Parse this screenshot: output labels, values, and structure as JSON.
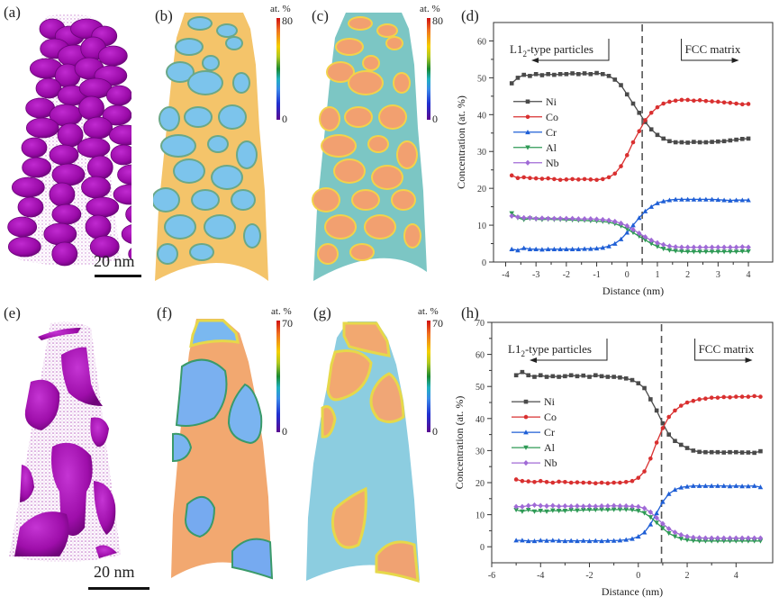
{
  "figure": {
    "panel_labels": [
      "(a)",
      "(b)",
      "(c)",
      "(d)",
      "(e)",
      "(f)",
      "(g)",
      "(h)"
    ],
    "scale_bars": [
      {
        "panel": "a",
        "text": "20 nm"
      },
      {
        "panel": "e",
        "text": "20 nm"
      }
    ],
    "colormaps": {
      "b": {
        "unit": "at. %",
        "max": "80",
        "min": "0"
      },
      "c": {
        "unit": "at. %",
        "max": "80",
        "min": "0"
      },
      "f": {
        "unit": "at. %",
        "max": "70",
        "min": "0"
      },
      "g": {
        "unit": "at. %",
        "max": "70",
        "min": "0"
      }
    },
    "colors": {
      "Ni": "#4a4a4a",
      "Co": "#d93030",
      "Cr": "#1f5fd6",
      "Al": "#2e9a55",
      "Nb": "#a06ad6",
      "particle": "#a010b0",
      "dashed": "#555555"
    }
  },
  "chart_data": [
    {
      "id": "d",
      "type": "line",
      "title": "",
      "xlabel": "Distance (nm)",
      "ylabel": "Concentration (at. %)",
      "xlim": [
        -4.4,
        4.8
      ],
      "ylim": [
        0,
        65
      ],
      "xticks": [
        -4,
        -3,
        -2,
        -1,
        0,
        1,
        2,
        3,
        4
      ],
      "xtick_labels": [
        "-4",
        "-3",
        "-2",
        "-1",
        "0",
        "1",
        "2",
        "3",
        "4"
      ],
      "yticks": [
        0,
        10,
        20,
        30,
        40,
        50,
        60
      ],
      "ytick_labels": [
        "0",
        "10",
        "20",
        "30",
        "40",
        "50",
        "60"
      ],
      "grid": false,
      "legend": "center-left",
      "interface_x": 0.5,
      "annotations": [
        {
          "text_main": "L1",
          "text_sub": "2",
          "text_rest": "-type particles",
          "arrow": "left"
        },
        {
          "text_main": "FCC matrix",
          "arrow": "right"
        }
      ],
      "x": [
        -3.8,
        -3.6,
        -3.4,
        -3.2,
        -3.0,
        -2.8,
        -2.6,
        -2.4,
        -2.2,
        -2.0,
        -1.8,
        -1.6,
        -1.4,
        -1.2,
        -1.0,
        -0.8,
        -0.6,
        -0.4,
        -0.2,
        0.0,
        0.2,
        0.4,
        0.6,
        0.8,
        1.0,
        1.2,
        1.4,
        1.6,
        1.8,
        2.0,
        2.2,
        2.4,
        2.6,
        2.8,
        3.0,
        3.2,
        3.4,
        3.6,
        3.8,
        4.0
      ],
      "series": [
        {
          "name": "Ni",
          "marker": "square",
          "values": [
            48.5,
            50.0,
            50.8,
            50.5,
            51.0,
            50.7,
            51.0,
            50.8,
            51.0,
            51.0,
            51.2,
            51.0,
            51.2,
            51.0,
            51.3,
            51.0,
            50.5,
            49.5,
            48.0,
            45.5,
            43.0,
            40.5,
            38.0,
            36.0,
            34.5,
            33.5,
            32.8,
            32.5,
            32.5,
            32.4,
            32.6,
            32.5,
            32.5,
            32.6,
            32.7,
            32.8,
            33.0,
            33.2,
            33.4,
            33.5
          ]
        },
        {
          "name": "Co",
          "marker": "circle",
          "values": [
            23.5,
            22.8,
            23.0,
            22.8,
            22.7,
            22.6,
            22.7,
            22.5,
            22.3,
            22.4,
            22.5,
            22.4,
            22.5,
            22.4,
            22.3,
            22.5,
            23.0,
            24.0,
            26.0,
            29.0,
            32.5,
            35.5,
            38.5,
            40.5,
            42.0,
            43.0,
            43.5,
            43.8,
            44.0,
            44.0,
            43.8,
            43.9,
            43.7,
            43.6,
            43.5,
            43.3,
            43.2,
            43.0,
            42.8,
            42.9
          ]
        },
        {
          "name": "Cr",
          "marker": "triangle-up",
          "values": [
            3.5,
            3.2,
            3.8,
            3.5,
            3.5,
            3.4,
            3.5,
            3.5,
            3.5,
            3.5,
            3.5,
            3.5,
            3.6,
            3.6,
            3.7,
            3.9,
            4.3,
            5.0,
            6.2,
            8.0,
            10.0,
            12.0,
            13.8,
            15.0,
            16.0,
            16.5,
            16.8,
            17.0,
            17.0,
            17.0,
            17.0,
            17.0,
            17.0,
            17.0,
            16.9,
            16.8,
            16.7,
            16.8,
            16.8,
            16.8
          ]
        },
        {
          "name": "Al",
          "marker": "triangle-down",
          "values": [
            13.2,
            12.0,
            11.5,
            11.8,
            11.6,
            11.5,
            11.6,
            11.5,
            11.5,
            11.4,
            11.4,
            11.3,
            11.3,
            11.2,
            11.1,
            11.0,
            10.8,
            10.4,
            9.8,
            9.0,
            8.0,
            7.0,
            6.0,
            5.0,
            4.2,
            3.6,
            3.2,
            3.0,
            2.9,
            2.8,
            2.8,
            2.8,
            2.8,
            2.8,
            2.8,
            2.8,
            2.8,
            2.8,
            2.9,
            2.9
          ]
        },
        {
          "name": "Nb",
          "marker": "diamond",
          "values": [
            12.5,
            12.2,
            12.0,
            12.0,
            11.8,
            11.9,
            11.8,
            11.8,
            11.8,
            11.8,
            11.8,
            11.7,
            11.7,
            11.7,
            11.6,
            11.5,
            11.3,
            11.0,
            10.5,
            9.8,
            8.8,
            7.8,
            6.8,
            5.9,
            5.2,
            4.7,
            4.3,
            4.1,
            4.0,
            4.0,
            4.0,
            4.0,
            4.0,
            4.0,
            4.0,
            4.0,
            4.0,
            4.0,
            4.1,
            4.0
          ]
        }
      ]
    },
    {
      "id": "h",
      "type": "line",
      "title": "",
      "xlabel": "Distance (nm)",
      "ylabel": "Concentration (at. %)",
      "xlim": [
        -6,
        5.5
      ],
      "ylim": [
        -5,
        70
      ],
      "xticks": [
        -6,
        -4,
        -2,
        0,
        2,
        4
      ],
      "xtick_labels": [
        "-6",
        "-4",
        "-2",
        "0",
        "2",
        "4"
      ],
      "yticks": [
        0,
        10,
        20,
        30,
        40,
        50,
        60,
        70
      ],
      "ytick_labels": [
        "0",
        "10",
        "20",
        "30",
        "40",
        "50",
        "60",
        "70"
      ],
      "grid": false,
      "legend": "center-left",
      "interface_x": 0.95,
      "annotations": [
        {
          "text_main": "L1",
          "text_sub": "2",
          "text_rest": "-type particles",
          "arrow": "left"
        },
        {
          "text_main": "FCC matrix",
          "arrow": "right"
        }
      ],
      "x": [
        -5.0,
        -4.75,
        -4.5,
        -4.25,
        -4.0,
        -3.75,
        -3.5,
        -3.25,
        -3.0,
        -2.75,
        -2.5,
        -2.25,
        -2.0,
        -1.75,
        -1.5,
        -1.25,
        -1.0,
        -0.75,
        -0.5,
        -0.25,
        0.0,
        0.25,
        0.5,
        0.75,
        1.0,
        1.25,
        1.5,
        1.75,
        2.0,
        2.25,
        2.5,
        2.75,
        3.0,
        3.25,
        3.5,
        3.75,
        4.0,
        4.25,
        4.5,
        4.75,
        5.0
      ],
      "series": [
        {
          "name": "Ni",
          "marker": "square",
          "values": [
            53.5,
            54.5,
            53.5,
            53.0,
            53.5,
            53.0,
            53.2,
            53.0,
            53.2,
            53.5,
            53.2,
            53.4,
            53.0,
            53.5,
            53.2,
            53.0,
            53.0,
            52.8,
            52.5,
            52.0,
            51.0,
            49.5,
            46.0,
            42.5,
            38.5,
            35.0,
            33.0,
            31.8,
            30.8,
            30.0,
            29.6,
            29.5,
            29.5,
            29.5,
            29.4,
            29.5,
            29.5,
            29.4,
            29.4,
            29.3,
            29.8
          ]
        },
        {
          "name": "Co",
          "marker": "circle",
          "values": [
            21.0,
            20.5,
            20.4,
            20.2,
            20.5,
            20.2,
            20.0,
            20.3,
            20.2,
            20.0,
            20.1,
            20.0,
            20.0,
            19.8,
            20.0,
            19.8,
            20.0,
            20.0,
            20.2,
            20.5,
            21.5,
            23.5,
            27.5,
            32.5,
            37.0,
            40.5,
            42.5,
            44.0,
            45.0,
            45.5,
            46.0,
            46.2,
            46.5,
            46.5,
            46.7,
            46.6,
            46.8,
            46.8,
            46.8,
            47.0,
            46.8
          ]
        },
        {
          "name": "Cr",
          "marker": "triangle-up",
          "values": [
            2.0,
            2.0,
            1.8,
            1.8,
            2.0,
            1.9,
            2.0,
            1.9,
            1.8,
            1.9,
            1.8,
            1.9,
            1.8,
            1.9,
            1.8,
            1.9,
            1.9,
            2.0,
            2.2,
            2.5,
            3.2,
            4.5,
            7.0,
            10.5,
            14.0,
            16.5,
            17.8,
            18.5,
            18.8,
            19.0,
            19.0,
            19.0,
            19.0,
            19.0,
            19.0,
            18.9,
            19.0,
            18.9,
            18.9,
            19.0,
            18.6
          ]
        },
        {
          "name": "Al",
          "marker": "triangle-down",
          "values": [
            11.5,
            11.0,
            11.5,
            11.0,
            11.2,
            11.0,
            11.3,
            11.2,
            11.2,
            11.5,
            11.3,
            11.5,
            11.5,
            11.5,
            11.6,
            11.5,
            11.6,
            11.6,
            11.6,
            11.5,
            11.2,
            10.5,
            9.2,
            7.5,
            5.8,
            4.2,
            3.2,
            2.5,
            2.1,
            1.9,
            1.8,
            1.8,
            1.8,
            1.8,
            1.8,
            1.8,
            1.8,
            1.8,
            1.8,
            1.8,
            1.8
          ]
        },
        {
          "name": "Nb",
          "marker": "diamond",
          "values": [
            12.5,
            12.5,
            12.8,
            13.0,
            12.8,
            12.7,
            12.8,
            12.6,
            12.7,
            12.6,
            12.7,
            12.6,
            12.7,
            12.6,
            12.7,
            12.7,
            12.8,
            12.7,
            12.7,
            12.6,
            12.5,
            12.0,
            10.8,
            9.0,
            7.2,
            5.6,
            4.5,
            3.7,
            3.2,
            2.9,
            2.8,
            2.7,
            2.7,
            2.7,
            2.7,
            2.7,
            2.7,
            2.7,
            2.7,
            2.7,
            2.7
          ]
        }
      ]
    }
  ]
}
